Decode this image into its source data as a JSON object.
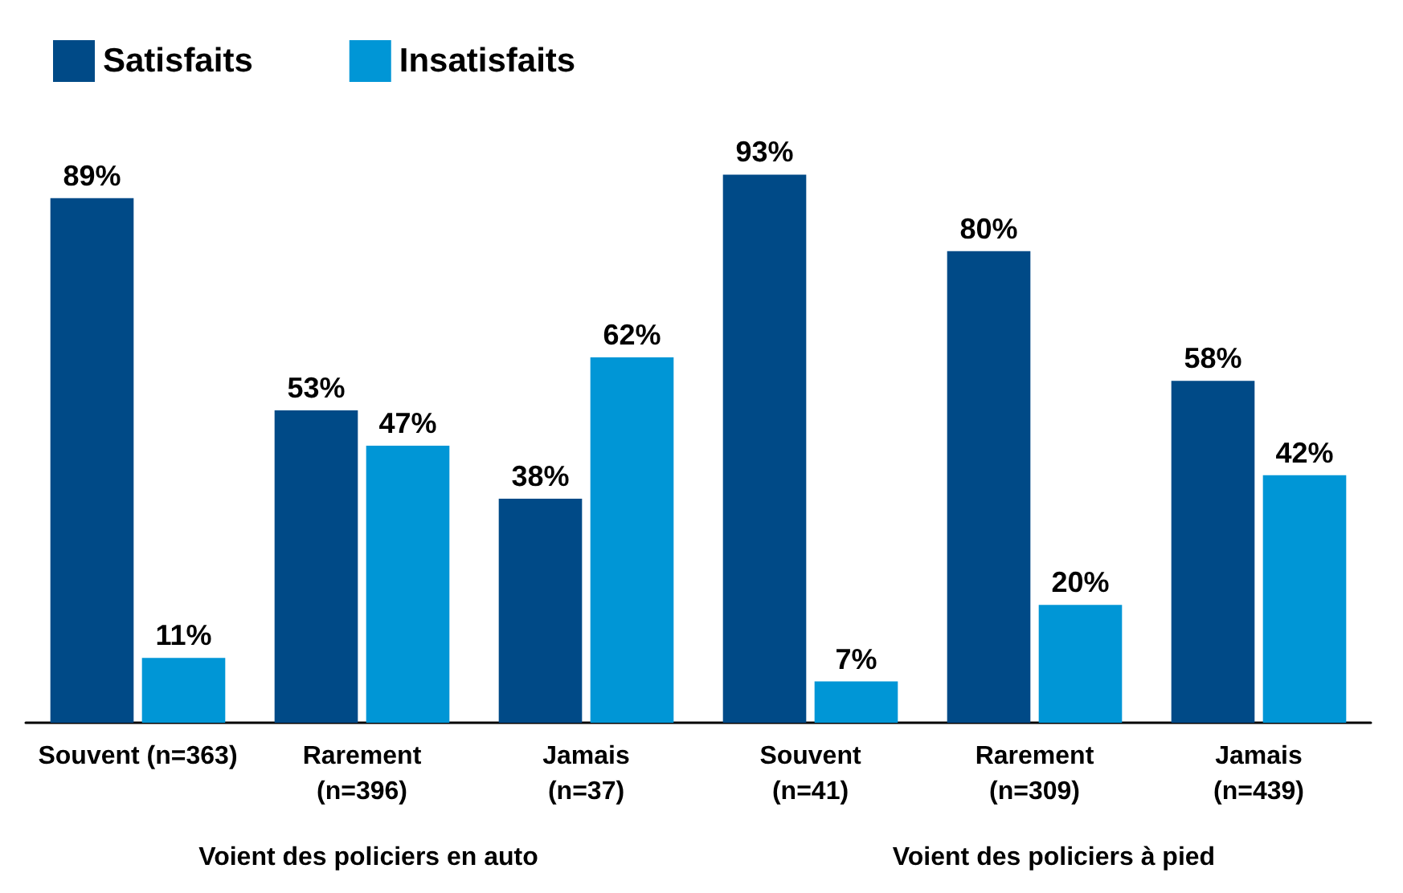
{
  "chart_data": {
    "type": "bar",
    "categories": [
      "Souvent (n=363)",
      "Rarement\n(n=396)",
      "Jamais\n(n=37)",
      "Souvent\n(n=41)",
      "Rarement\n(n=309)",
      "Jamais\n(n=439)"
    ],
    "series": [
      {
        "name": "Satisfaits",
        "color": "#004a87",
        "values": [
          89,
          53,
          38,
          93,
          80,
          58
        ],
        "value_labels": [
          "89%",
          "53%",
          "38%",
          "93%",
          "80%",
          "58%"
        ]
      },
      {
        "name": "Insatisfaits",
        "color": "#0096d6",
        "values": [
          11,
          47,
          62,
          7,
          20,
          42
        ],
        "value_labels": [
          "11%",
          "47%",
          "62%",
          "7%",
          "20%",
          "42%"
        ]
      }
    ],
    "annotations": [
      "Voient des policiers en auto",
      "Voient des policiers à pied"
    ],
    "legend": "top left",
    "grid": false
  }
}
